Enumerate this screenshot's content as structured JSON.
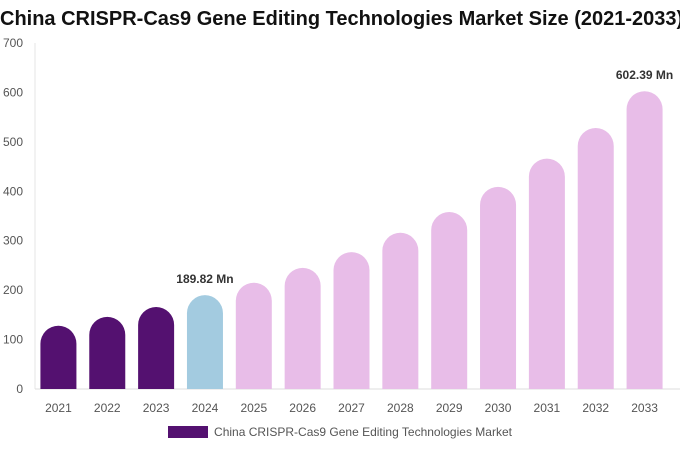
{
  "chart_data": {
    "type": "bar",
    "title": "China CRISPR-Cas9 Gene Editing Technologies Market Size (2021-2033)",
    "categories": [
      "2021",
      "2022",
      "2023",
      "2024",
      "2025",
      "2026",
      "2027",
      "2028",
      "2029",
      "2030",
      "2031",
      "2032",
      "2033"
    ],
    "series": [
      {
        "name": "China CRISPR-Cas9 Gene Editing Technologies Market",
        "values": [
          128,
          146,
          166,
          189.82,
          215,
          245,
          277,
          316,
          358,
          409,
          466,
          528,
          602.39
        ]
      }
    ],
    "data_labels": [
      {
        "category": "2024",
        "text": "189.82 Mn"
      },
      {
        "category": "2033",
        "text": "602.39 Mn"
      }
    ],
    "ylim": [
      0,
      700
    ],
    "yticks": [
      0,
      100,
      200,
      300,
      400,
      500,
      600,
      700
    ],
    "grid": false,
    "legend_position": "bottom",
    "colors": {
      "historical": "#541170",
      "current": "#a3cbe0",
      "forecast": "#e8bde8"
    }
  }
}
